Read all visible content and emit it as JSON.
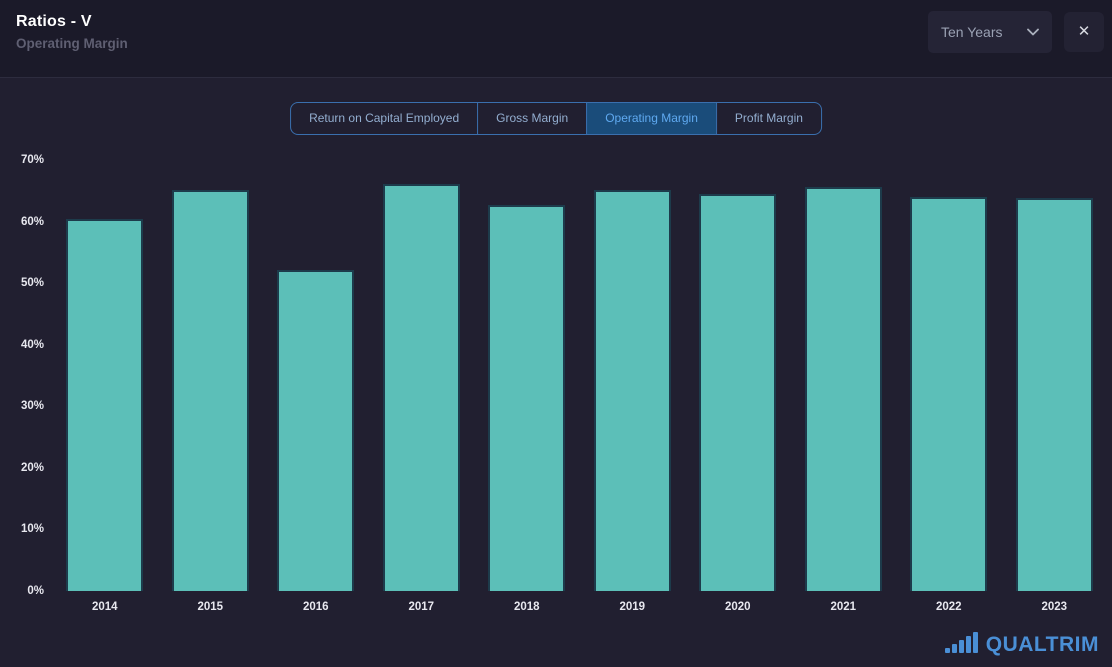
{
  "header": {
    "title": "Ratios - V",
    "subtitle": "Operating Margin",
    "period_dropdown": {
      "value": "Ten Years",
      "icon": "chevron-down"
    },
    "close_icon": "✕"
  },
  "tabs": [
    {
      "label": "Return on Capital Employed",
      "active": false
    },
    {
      "label": "Gross Margin",
      "active": false
    },
    {
      "label": "Operating Margin",
      "active": true
    },
    {
      "label": "Profit Margin",
      "active": false
    }
  ],
  "chart_data": {
    "type": "bar",
    "title": "Operating Margin",
    "categories": [
      "2014",
      "2015",
      "2016",
      "2017",
      "2018",
      "2019",
      "2020",
      "2021",
      "2022",
      "2023"
    ],
    "values": [
      60.4,
      65.2,
      52.1,
      66.1,
      62.7,
      65.2,
      64.4,
      65.6,
      64.0,
      63.9
    ],
    "xlabel": "",
    "ylabel": "",
    "ylim": [
      0,
      70
    ],
    "ytick_step": 10,
    "ytick_format": "percent",
    "grid": false,
    "legend": "none",
    "bar_color": "#5cbfb8",
    "bar_border_color": "#1d3b4b"
  },
  "footer": {
    "logo_text": "QUALTRIM"
  },
  "colors": {
    "background": "#211f30",
    "header_background": "#1b1a29",
    "accent_blue": "#3a6fae",
    "tab_active_bg": "#1a4c7a",
    "tab_active_text": "#5fa9f0",
    "tab_inactive_text": "#93aed0",
    "bar_fill": "#5cbfb8",
    "logo_blue": "#4a8fd6",
    "axis_text": "#e8e8ef"
  }
}
